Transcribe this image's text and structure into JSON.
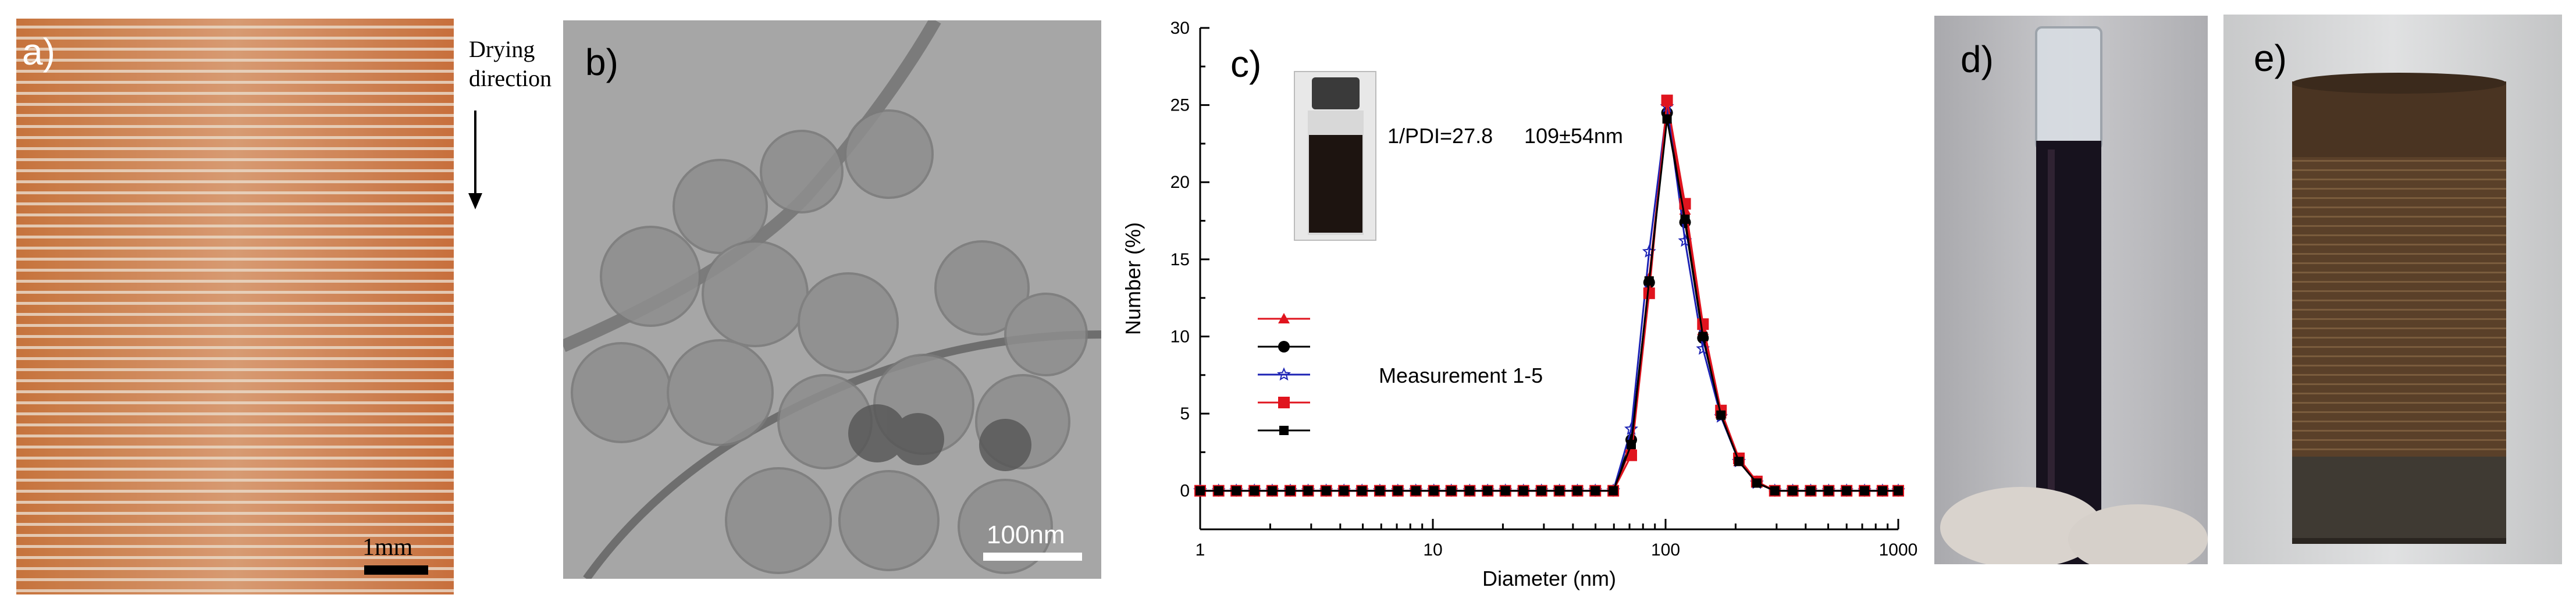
{
  "figure": {
    "panel_a": {
      "label": "a)",
      "arrow_text_line1": "Drying",
      "arrow_text_line2": "direction",
      "scale_label": "1mm"
    },
    "panel_b": {
      "label": "b)",
      "scale_label": "100nm"
    },
    "panel_c": {
      "label": "c)",
      "annotation_pdi": "1/PDI=27.8",
      "annotation_size": "109±54nm",
      "legend_caption": "Measurement 1-5"
    },
    "panel_d": {
      "label": "d)"
    },
    "panel_e": {
      "label": "e)"
    }
  },
  "chart_data": {
    "type": "line",
    "xlabel": "Diameter (nm)",
    "ylabel": "Number (%)",
    "xscale": "log",
    "xlim": [
      1,
      1000
    ],
    "ylim": [
      -2.5,
      30
    ],
    "xticks": [
      1,
      10,
      100,
      1000
    ],
    "xtick_labels": [
      "1",
      "10",
      "100",
      "1000"
    ],
    "yticks": [
      0,
      5,
      10,
      15,
      20,
      25,
      30
    ],
    "ytick_labels": [
      "0",
      "5",
      "10",
      "15",
      "20",
      "25",
      "30"
    ],
    "legend_placement": "left-middle",
    "x": [
      1.0,
      1.2,
      1.43,
      1.71,
      2.04,
      2.44,
      2.91,
      3.48,
      4.15,
      4.96,
      5.92,
      7.07,
      8.45,
      10.1,
      12.0,
      14.4,
      17.2,
      20.5,
      24.5,
      29.3,
      35.0,
      41.8,
      49.9,
      59.6,
      71.2,
      85.0,
      101.5,
      121.3,
      144.8,
      173.0,
      206.6,
      246.7,
      294.7,
      352.0,
      420.4,
      502.2,
      599.8,
      716.4,
      855.7,
      1000.0
    ],
    "series": [
      {
        "marker": "triangle",
        "color": "#e0141e",
        "values": [
          0,
          0,
          0,
          0,
          0,
          0,
          0,
          0,
          0,
          0,
          0,
          0,
          0,
          0,
          0,
          0,
          0,
          0,
          0,
          0,
          0,
          0,
          0,
          0,
          2.8,
          13.8,
          24.8,
          18.2,
          10.4,
          5.0,
          1.9,
          0.5,
          0,
          0,
          0,
          0,
          0,
          0,
          0,
          0
        ]
      },
      {
        "marker": "circle",
        "color": "#000000",
        "values": [
          0,
          0,
          0,
          0,
          0,
          0,
          0,
          0,
          0,
          0,
          0,
          0,
          0,
          0,
          0,
          0,
          0,
          0,
          0,
          0,
          0,
          0,
          0,
          0,
          3.3,
          13.5,
          24.5,
          17.4,
          9.9,
          5.0,
          2.0,
          0.6,
          0,
          0,
          0,
          0,
          0,
          0,
          0,
          0
        ]
      },
      {
        "marker": "star-open",
        "color": "#1c22b4",
        "values": [
          0,
          0,
          0,
          0,
          0,
          0,
          0,
          0,
          0,
          0,
          0,
          0,
          0,
          0,
          0,
          0,
          0,
          0,
          0,
          0,
          0,
          0,
          0,
          0,
          4.0,
          15.5,
          24.9,
          16.2,
          9.2,
          4.8,
          1.9,
          0.5,
          0,
          0,
          0,
          0,
          0,
          0,
          0,
          0
        ]
      },
      {
        "marker": "square",
        "color": "#e0141e",
        "values": [
          0,
          0,
          0,
          0,
          0,
          0,
          0,
          0,
          0,
          0,
          0,
          0,
          0,
          0,
          0,
          0,
          0,
          0,
          0,
          0,
          0,
          0,
          0,
          0,
          2.3,
          12.8,
          25.3,
          18.6,
          10.8,
          5.2,
          2.1,
          0.6,
          0,
          0,
          0,
          0,
          0,
          0,
          0,
          0
        ]
      },
      {
        "marker": "square-small",
        "color": "#000000",
        "values": [
          0,
          0,
          0,
          0,
          0,
          0,
          0,
          0,
          0,
          0,
          0,
          0,
          0,
          0,
          0,
          0,
          0,
          0,
          0,
          0,
          0,
          0,
          0,
          0,
          3.0,
          13.6,
          24.1,
          17.6,
          10.0,
          4.9,
          1.9,
          0.5,
          0,
          0,
          0,
          0,
          0,
          0,
          0,
          0
        ]
      }
    ]
  }
}
